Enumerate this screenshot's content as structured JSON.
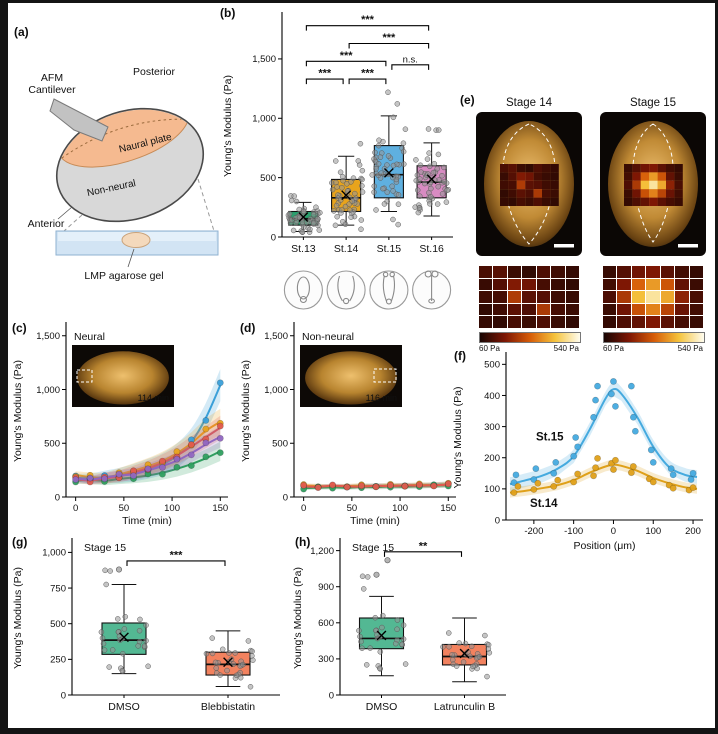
{
  "panel_labels": {
    "a": "(a)",
    "b": "(b)",
    "c": "(c)",
    "d": "(d)",
    "e": "(e)",
    "f": "(f)",
    "g": "(g)",
    "h": "(h)"
  },
  "panel_a": {
    "afm_line1": "AFM",
    "afm_line2": "Cantilever",
    "posterior": "Posterior",
    "neural_plate": "Naural plate",
    "non_neural": "Non-neural",
    "anterior": "Anterior",
    "gel_label": "LMP agarose gel"
  },
  "panel_e": {
    "scale_min_label": "60 Pa",
    "scale_max_label": "540 Pa",
    "scale_domain": [
      60,
      540
    ],
    "columns": [
      {
        "title": "Stage 14",
        "heatmap": [
          [
            130,
            150,
            110,
            95,
            135,
            115,
            100
          ],
          [
            105,
            145,
            210,
            185,
            125,
            105,
            95
          ],
          [
            115,
            125,
            270,
            155,
            145,
            115,
            105
          ],
          [
            95,
            115,
            155,
            135,
            265,
            125,
            110
          ],
          [
            100,
            95,
            125,
            110,
            135,
            105,
            95
          ]
        ]
      },
      {
        "title": "Stage 15",
        "heatmap": [
          [
            105,
            145,
            185,
            205,
            155,
            120,
            100
          ],
          [
            120,
            205,
            330,
            390,
            310,
            165,
            110
          ],
          [
            135,
            265,
            430,
            490,
            405,
            225,
            130
          ],
          [
            110,
            185,
            305,
            365,
            285,
            175,
            120
          ],
          [
            100,
            135,
            165,
            205,
            155,
            125,
            105
          ]
        ]
      }
    ]
  },
  "chart_data": [
    {
      "id": "b",
      "type": "boxplot",
      "ylabel": "Young's Modulus (Pa)",
      "ylim": [
        0,
        1870
      ],
      "yticks": [
        0,
        500,
        1000,
        1500
      ],
      "categories": [
        "St.13",
        "St.14",
        "St.15",
        "St.16"
      ],
      "colors": [
        "#2aa06e",
        "#e8a41c",
        "#5fb0e0",
        "#d88bc2"
      ],
      "boxes": [
        {
          "lo": 46,
          "q1": 100,
          "med": 154,
          "q3": 215,
          "hi": 292,
          "mean": 168
        },
        {
          "lo": 100,
          "q1": 215,
          "med": 330,
          "q3": 485,
          "hi": 680,
          "mean": 352
        },
        {
          "lo": 215,
          "q1": 330,
          "med": 525,
          "q3": 770,
          "hi": 1020,
          "mean": 540
        },
        {
          "lo": 177,
          "q1": 330,
          "med": 462,
          "q3": 600,
          "hi": 793,
          "mean": 487
        }
      ],
      "n_points": 55,
      "significance": [
        {
          "a": 0,
          "b": 1,
          "y": 1330,
          "label": "***"
        },
        {
          "a": 1,
          "b": 2,
          "y": 1330,
          "label": "***"
        },
        {
          "a": 0,
          "b": 2,
          "y": 1480,
          "label": "***"
        },
        {
          "a": 2,
          "b": 3,
          "y": 1450,
          "label": "n.s."
        },
        {
          "a": 1,
          "b": 3,
          "y": 1630,
          "label": "***"
        },
        {
          "a": 0,
          "b": 3,
          "y": 1780,
          "label": "***"
        }
      ]
    },
    {
      "id": "c",
      "type": "scatter",
      "x_is_time": true,
      "xlabel": "Time (min)",
      "ylabel": "Young's Modulus (Pa)",
      "xlim": [
        -10,
        158
      ],
      "ylim": [
        0,
        1600
      ],
      "xticks": [
        0,
        50,
        100,
        150
      ],
      "yticks": [
        0,
        500,
        1000,
        1500
      ],
      "inset": {
        "title": "Neural",
        "time": "114 min",
        "marker": "left"
      },
      "series": [
        {
          "color": "#3a9fd8",
          "x": [
            0,
            15,
            30,
            45,
            60,
            75,
            90,
            105,
            120,
            135,
            150
          ],
          "y": [
            180,
            172,
            186,
            200,
            225,
            262,
            305,
            382,
            512,
            735,
            1040
          ],
          "points_y": [
            196,
            160,
            200,
            186,
            240,
            246,
            322,
            366,
            532,
            712,
            1062
          ],
          "band": [
            36,
            150
          ]
        },
        {
          "color": "#e8a21f",
          "x": [
            0,
            15,
            30,
            45,
            60,
            75,
            90,
            105,
            120,
            135,
            150
          ],
          "y": [
            205,
            186,
            176,
            210,
            246,
            286,
            336,
            406,
            500,
            616,
            700
          ],
          "points_y": [
            190,
            202,
            160,
            226,
            232,
            300,
            320,
            422,
            482,
            632,
            686
          ],
          "band": [
            34,
            120
          ]
        },
        {
          "color": "#2f9e5f",
          "x": [
            0,
            15,
            30,
            45,
            60,
            75,
            90,
            105,
            120,
            135,
            150
          ],
          "y": [
            152,
            158,
            152,
            168,
            182,
            200,
            226,
            262,
            306,
            360,
            425
          ],
          "points_y": [
            140,
            172,
            144,
            180,
            170,
            214,
            212,
            276,
            292,
            374,
            412
          ],
          "band": [
            30,
            90
          ]
        },
        {
          "color": "#e05a4e",
          "x": [
            0,
            15,
            30,
            45,
            60,
            75,
            90,
            105,
            120,
            135,
            150
          ],
          "y": [
            165,
            153,
            172,
            192,
            228,
            268,
            318,
            386,
            470,
            556,
            645
          ],
          "points_y": [
            180,
            140,
            186,
            178,
            244,
            256,
            334,
            372,
            488,
            540,
            660
          ],
          "band": [
            32,
            110
          ]
        },
        {
          "color": "#9066c0",
          "x": [
            0,
            15,
            30,
            45,
            60,
            75,
            90,
            105,
            120,
            135,
            150
          ],
          "y": [
            172,
            162,
            182,
            198,
            212,
            248,
            288,
            338,
            408,
            488,
            560
          ],
          "points_y": [
            162,
            176,
            170,
            212,
            198,
            262,
            276,
            352,
            392,
            504,
            546
          ],
          "band": [
            30,
            100
          ]
        }
      ]
    },
    {
      "id": "d",
      "type": "scatter",
      "x_is_time": true,
      "xlabel": "Time (min)",
      "ylabel": "Young's Modulus (Pa)",
      "xlim": [
        -10,
        158
      ],
      "ylim": [
        0,
        1600
      ],
      "xticks": [
        0,
        50,
        100,
        150
      ],
      "yticks": [
        0,
        500,
        1000,
        1500
      ],
      "inset": {
        "title": "Non-neural",
        "time": "116 min",
        "marker": "right"
      },
      "series": [
        {
          "color": "#3a9fd8",
          "x": [
            0,
            15,
            30,
            45,
            60,
            75,
            90,
            105,
            120,
            135,
            150
          ],
          "y": [
            95,
            98,
            100,
            97,
            102,
            105,
            103,
            108,
            106,
            112,
            118
          ],
          "points_y": [
            104,
            90,
            108,
            92,
            110,
            98,
            112,
            102,
            114,
            106,
            124
          ],
          "band": [
            20,
            26
          ]
        },
        {
          "color": "#e8a21f",
          "x": [
            0,
            15,
            30,
            45,
            60,
            75,
            90,
            105,
            120,
            135,
            150
          ],
          "y": [
            108,
            102,
            96,
            102,
            106,
            101,
            110,
            106,
            114,
            110,
            120
          ],
          "points_y": [
            116,
            94,
            104,
            96,
            114,
            95,
            118,
            100,
            122,
            104,
            128
          ],
          "band": [
            20,
            26
          ]
        },
        {
          "color": "#2f9e5f",
          "x": [
            0,
            15,
            30,
            45,
            60,
            75,
            90,
            105,
            120,
            135,
            150
          ],
          "y": [
            82,
            86,
            90,
            86,
            94,
            91,
            99,
            96,
            102,
            106,
            110
          ],
          "points_y": [
            74,
            94,
            82,
            94,
            86,
            99,
            91,
            104,
            96,
            114,
            102
          ],
          "band": [
            18,
            24
          ]
        },
        {
          "color": "#e05a4e",
          "x": [
            0,
            15,
            30,
            45,
            60,
            75,
            90,
            105,
            120,
            135,
            150
          ],
          "y": [
            100,
            96,
            104,
            100,
            96,
            104,
            101,
            109,
            105,
            111,
            114
          ],
          "points_y": [
            108,
            88,
            112,
            92,
            104,
            96,
            109,
            101,
            113,
            103,
            122
          ],
          "band": [
            18,
            24
          ]
        }
      ]
    },
    {
      "id": "f",
      "type": "scatter",
      "xlabel": "Position (μm)",
      "ylabel": "Young's Modulus (Pa)",
      "xlim": [
        -270,
        225
      ],
      "ylim": [
        0,
        530
      ],
      "xticks": [
        -200,
        -100,
        0,
        100,
        200
      ],
      "yticks": [
        0,
        100,
        200,
        300,
        400,
        500
      ],
      "labels": [
        {
          "text": "St.15",
          "color": "#45aadf",
          "x": -160,
          "y": 255
        },
        {
          "text": "St.14",
          "color": "#dfa019",
          "x": -175,
          "y": 42
        }
      ],
      "series": [
        {
          "color": "#45aadf",
          "curve_x": [
            -260,
            -220,
            -180,
            -140,
            -100,
            -60,
            -20,
            0,
            20,
            60,
            100,
            140,
            180,
            210
          ],
          "curve_y": [
            115,
            128,
            142,
            165,
            205,
            290,
            390,
            420,
            405,
            330,
            235,
            170,
            145,
            138
          ],
          "points_x": [
            -250,
            -245,
            -200,
            -195,
            -150,
            -145,
            -100,
            -95,
            -90,
            -50,
            -45,
            -40,
            -5,
            0,
            5,
            45,
            50,
            55,
            95,
            100,
            145,
            150,
            195,
            200
          ],
          "points_y": [
            120,
            145,
            130,
            165,
            150,
            185,
            205,
            265,
            235,
            330,
            385,
            430,
            405,
            445,
            365,
            430,
            330,
            285,
            225,
            185,
            165,
            145,
            130,
            150
          ],
          "band": [
            22,
            22
          ]
        },
        {
          "color": "#dfa019",
          "curve_x": [
            -260,
            -220,
            -180,
            -140,
            -100,
            -60,
            -20,
            0,
            20,
            60,
            100,
            140,
            180,
            210
          ],
          "curve_y": [
            88,
            94,
            102,
            112,
            128,
            152,
            172,
            178,
            174,
            158,
            135,
            118,
            105,
            100
          ],
          "points_x": [
            -250,
            -240,
            -200,
            -190,
            -150,
            -140,
            -100,
            -90,
            -50,
            -45,
            -40,
            -5,
            0,
            5,
            45,
            50,
            90,
            100,
            140,
            150,
            190,
            200
          ],
          "points_y": [
            88,
            108,
            98,
            118,
            108,
            128,
            122,
            148,
            142,
            168,
            198,
            182,
            162,
            192,
            152,
            172,
            132,
            122,
            112,
            102,
            96,
            104
          ],
          "band": [
            16,
            16
          ]
        }
      ]
    },
    {
      "id": "g",
      "type": "boxplot",
      "title": "Stage 15",
      "ylabel": "Young's Modulus (Pa)",
      "ylim": [
        0,
        1080
      ],
      "yticks": [
        0,
        250,
        500,
        750,
        1000
      ],
      "categories": [
        "DMSO",
        "Blebbistatin"
      ],
      "colors": [
        "#53b893",
        "#f2825f"
      ],
      "boxes": [
        {
          "lo": 150,
          "q1": 285,
          "med": 385,
          "q3": 505,
          "hi": 775,
          "mean": 405,
          "outliers": [
            880
          ]
        },
        {
          "lo": 60,
          "q1": 140,
          "med": 215,
          "q3": 300,
          "hi": 450,
          "mean": 230
        }
      ],
      "n_points": 30,
      "significance": [
        {
          "a": 0,
          "b": 1,
          "y": 940,
          "label": "***"
        }
      ]
    },
    {
      "id": "h",
      "type": "boxplot",
      "title": "Stage 15",
      "ylabel": "Young's Modulus (Pa)",
      "ylim": [
        0,
        1280
      ],
      "yticks": [
        0,
        300,
        600,
        900,
        1200
      ],
      "categories": [
        "DMSO",
        "Latrunculin B"
      ],
      "colors": [
        "#53b893",
        "#f2825f"
      ],
      "boxes": [
        {
          "lo": 160,
          "q1": 385,
          "med": 470,
          "q3": 640,
          "hi": 820,
          "mean": 495,
          "outliers": [
            1000,
            1120
          ]
        },
        {
          "lo": 110,
          "q1": 250,
          "med": 320,
          "q3": 420,
          "hi": 640,
          "mean": 345
        }
      ],
      "n_points": 30,
      "significance": [
        {
          "a": 0,
          "b": 1,
          "y": 1190,
          "label": "**"
        }
      ]
    }
  ]
}
